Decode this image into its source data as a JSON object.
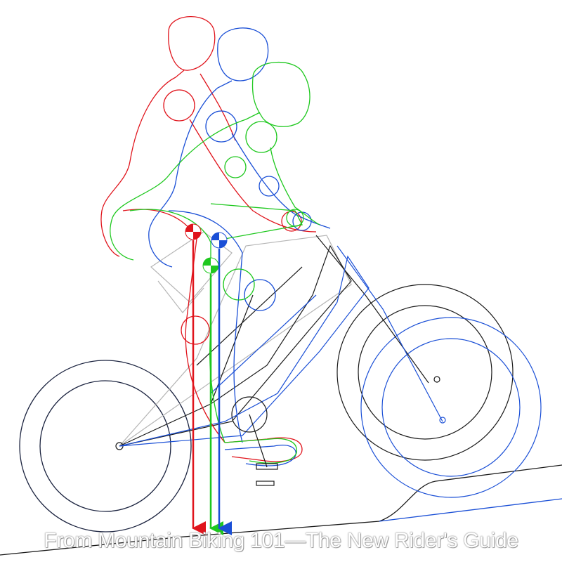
{
  "caption": "From Mountain Biking 101—The New Rider's Guide",
  "colors": {
    "red": "#e0141c",
    "green": "#1ec81e",
    "blue": "#1a4fd6",
    "black": "#1a1a1a",
    "grey": "#b5b5b5",
    "navy": "#1c2440"
  }
}
